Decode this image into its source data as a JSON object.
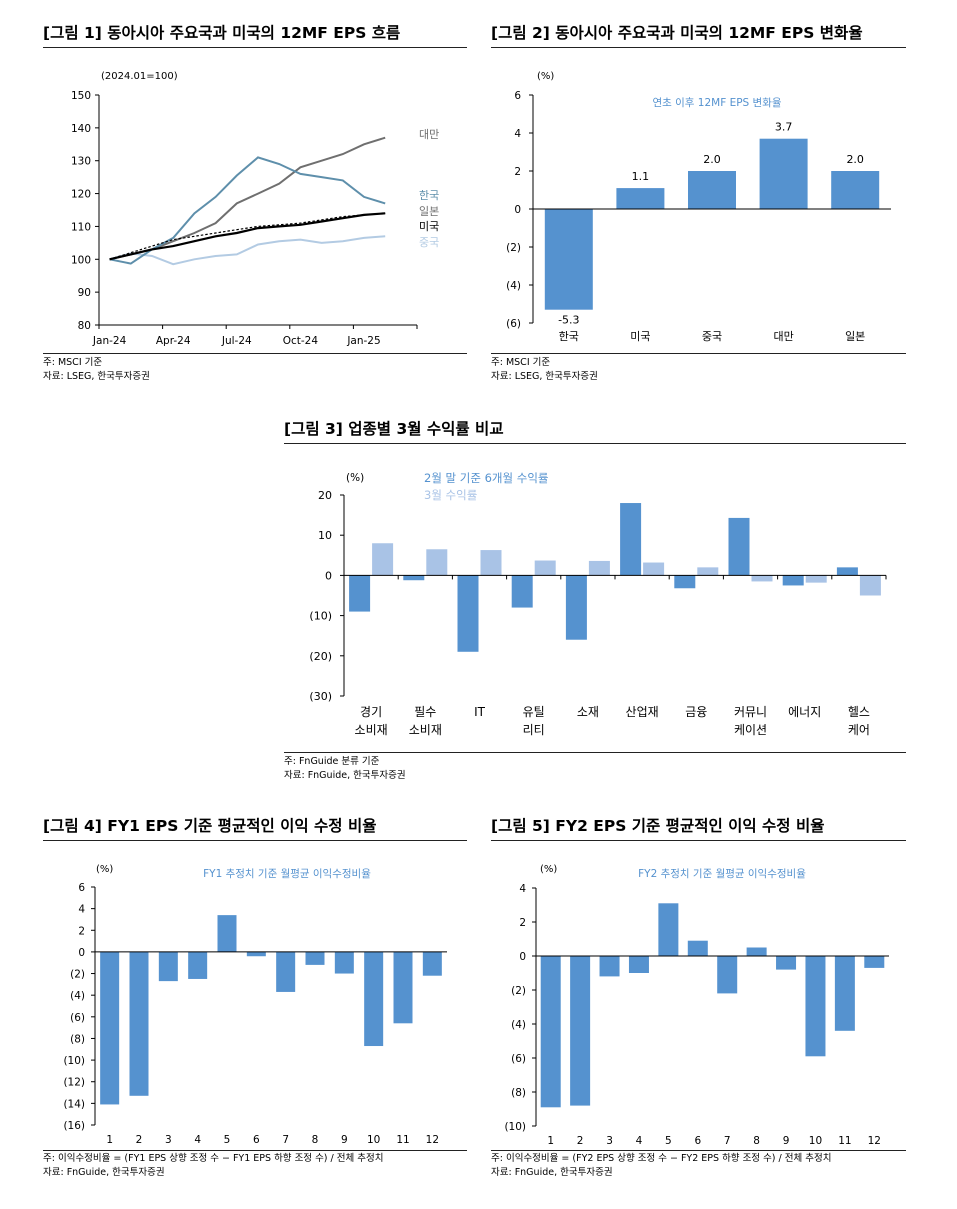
{
  "colors": {
    "blue": "#5592cf",
    "light_blue": "#a9c3e6",
    "teal": "#5e8fab",
    "gray": "#6f6f6f",
    "pale_blue": "#b3cbe3",
    "black": "#000000"
  },
  "fig1": {
    "title": "[그림 1] 동아시아 주요국과 미국의 12MF EPS 흐름",
    "note1": "주: MSCI 기준",
    "note2": "자료: LSEG, 한국투자증권",
    "chart_data": {
      "type": "line",
      "unit_note": "(2024.01=100)",
      "x_ticks": [
        "Jan-24",
        "Apr-24",
        "Jul-24",
        "Oct-24",
        "Jan-25"
      ],
      "x": [
        "2024-01",
        "2024-02",
        "2024-03",
        "2024-04",
        "2024-05",
        "2024-06",
        "2024-07",
        "2024-08",
        "2024-09",
        "2024-10",
        "2024-11",
        "2024-12",
        "2025-01",
        "2025-02",
        "2025-03"
      ],
      "ylim": [
        80,
        150
      ],
      "y_ticks": [
        80,
        90,
        100,
        110,
        120,
        130,
        140,
        150
      ],
      "series": [
        {
          "name": "대만",
          "color": "#6f6f6f",
          "dashed": false,
          "values": [
            100,
            101.5,
            103,
            105.5,
            108,
            111,
            117,
            120,
            123,
            128,
            130,
            132,
            135,
            137,
            null
          ]
        },
        {
          "name": "한국",
          "color": "#5e8fab",
          "dashed": false,
          "values": [
            100,
            98.7,
            103,
            106.5,
            114,
            119,
            125.5,
            131,
            129,
            126,
            125,
            124,
            119,
            117,
            null
          ]
        },
        {
          "name": "일본",
          "color": "#000000",
          "dashed": true,
          "values": [
            100,
            102,
            104,
            106,
            107,
            108,
            109,
            110,
            110.5,
            111,
            112,
            113,
            113.5,
            114,
            null
          ]
        },
        {
          "name": "미국",
          "color": "#000000",
          "dashed": false,
          "values": [
            100,
            101.5,
            103,
            104,
            105.5,
            107,
            108,
            109.5,
            110,
            110.5,
            111.5,
            112.5,
            113.5,
            114,
            null
          ]
        },
        {
          "name": "중국",
          "color": "#b3cbe3",
          "dashed": false,
          "values": [
            100,
            101.8,
            101,
            98.5,
            100,
            101,
            101.5,
            104.5,
            105.5,
            106,
            105,
            105.5,
            106.5,
            107,
            null
          ]
        }
      ]
    }
  },
  "fig2": {
    "title": "[그림 2] 동아시아 주요국과 미국의 12MF EPS 변화율",
    "note1": "주: MSCI 기준",
    "note2": "자료: LSEG, 한국투자증권",
    "chart_data": {
      "type": "bar",
      "unit_note": "(%)",
      "legend": "연초 이후 12MF EPS 변화율",
      "categories": [
        "한국",
        "미국",
        "중국",
        "대만",
        "일본"
      ],
      "values": [
        -5.3,
        1.1,
        2.0,
        3.7,
        2.0
      ],
      "value_labels": [
        "-5.3",
        "1.1",
        "2.0",
        "3.7",
        "2.0"
      ],
      "ylim": [
        -6,
        6
      ],
      "y_ticks": [
        6,
        4,
        2,
        0,
        -2,
        -4,
        -6
      ],
      "y_tick_labels": [
        "6",
        "4",
        "2",
        "0",
        "(2)",
        "(4)",
        "(6)"
      ]
    }
  },
  "fig3": {
    "title": "[그림 3] 업종별 3월 수익률 비교",
    "note1": "주: FnGuide 분류 기준",
    "note2": "자료: FnGuide, 한국투자증권",
    "chart_data": {
      "type": "bar",
      "unit_note": "(%)",
      "categories": [
        [
          "경기",
          "소비재"
        ],
        [
          "필수",
          "소비재"
        ],
        [
          "IT",
          ""
        ],
        [
          "유틸",
          "리티"
        ],
        [
          "소재",
          ""
        ],
        [
          "산업재",
          ""
        ],
        [
          "금융",
          ""
        ],
        [
          "커뮤니",
          "케이션"
        ],
        [
          "에너지",
          ""
        ],
        [
          "헬스",
          "케어"
        ]
      ],
      "series": [
        {
          "name": "2월 말 기준 6개월 수익률",
          "color": "#5592cf",
          "values": [
            -9,
            -1.2,
            -19,
            -8,
            -16,
            18,
            -3.2,
            14.3,
            -2.5,
            2
          ]
        },
        {
          "name": "3월 수익률",
          "color": "#a9c3e6",
          "values": [
            8,
            6.5,
            6.3,
            3.7,
            3.6,
            3.2,
            2,
            -1.5,
            -1.8,
            -5
          ]
        }
      ],
      "ylim": [
        -30,
        20
      ],
      "y_ticks": [
        20,
        10,
        0,
        -10,
        -20,
        -30
      ],
      "y_tick_labels": [
        "20",
        "10",
        "0",
        "(10)",
        "(20)",
        "(30)"
      ]
    }
  },
  "fig4": {
    "title": "[그림 4] FY1 EPS 기준 평균적인 이익 수정 비율",
    "note1": "주: 이익수정비율 = (FY1 EPS 상향 조정 수 − FY1 EPS 하향 조정 수) / 전체 추정치",
    "note2": "자료: FnGuide, 한국투자증권",
    "chart_data": {
      "type": "bar",
      "unit_note": "(%)",
      "legend": "FY1 추정치 기준 월평균 이익수정비율",
      "categories": [
        "1",
        "2",
        "3",
        "4",
        "5",
        "6",
        "7",
        "8",
        "9",
        "10",
        "11",
        "12"
      ],
      "values": [
        -14.1,
        -13.3,
        -2.7,
        -2.5,
        3.4,
        -0.4,
        -3.7,
        -1.2,
        -2.0,
        -8.7,
        -6.6,
        -2.2
      ],
      "ylim": [
        -16,
        6
      ],
      "y_ticks": [
        6,
        4,
        2,
        0,
        -2,
        -4,
        -6,
        -8,
        -10,
        -12,
        -14,
        -16
      ],
      "y_tick_labels": [
        "6",
        "4",
        "2",
        "0",
        "(2)",
        "(4)",
        "(6)",
        "(8)",
        "(10)",
        "(12)",
        "(14)",
        "(16)"
      ]
    }
  },
  "fig5": {
    "title": "[그림 5] FY2 EPS 기준 평균적인 이익 수정 비율",
    "note1": "주: 이익수정비율 = (FY2 EPS 상향 조정 수 − FY2 EPS 하향 조정 수) / 전체 추정치",
    "note2": "자료: FnGuide, 한국투자증권",
    "chart_data": {
      "type": "bar",
      "unit_note": "(%)",
      "legend": "FY2 추정치 기준 월평균 이익수정비율",
      "categories": [
        "1",
        "2",
        "3",
        "4",
        "5",
        "6",
        "7",
        "8",
        "9",
        "10",
        "11",
        "12"
      ],
      "values": [
        -8.9,
        -8.8,
        -1.2,
        -1.0,
        3.1,
        0.9,
        -2.2,
        0.5,
        -0.8,
        -5.9,
        -4.4,
        -0.7
      ],
      "ylim": [
        -10,
        4
      ],
      "y_ticks": [
        4,
        2,
        0,
        -2,
        -4,
        -6,
        -8,
        -10
      ],
      "y_tick_labels": [
        "4",
        "2",
        "0",
        "(2)",
        "(4)",
        "(6)",
        "(8)",
        "(10)"
      ]
    }
  }
}
